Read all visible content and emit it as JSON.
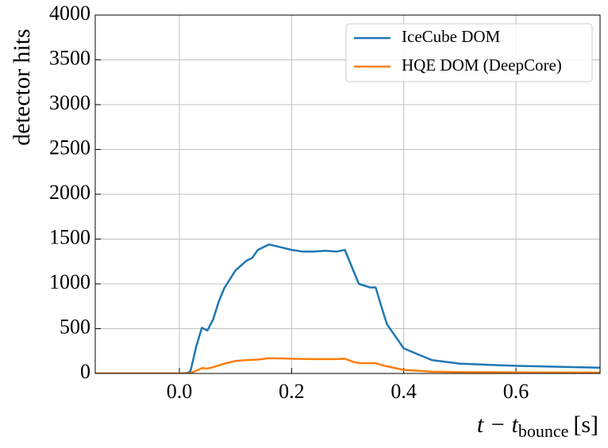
{
  "chart_data": {
    "type": "line",
    "ylabel": "detector hits",
    "xlabel": {
      "main": "t − t",
      "sub": "bounce",
      "unit": "[s]"
    },
    "x": [
      -0.15,
      0,
      0.015,
      0.02,
      0.03,
      0.04,
      0.05,
      0.06,
      0.07,
      0.08,
      0.1,
      0.12,
      0.13,
      0.14,
      0.16,
      0.18,
      0.2,
      0.22,
      0.24,
      0.26,
      0.28,
      0.295,
      0.31,
      0.32,
      0.34,
      0.35,
      0.36,
      0.37,
      0.4,
      0.45,
      0.5,
      0.6,
      0.75
    ],
    "series": [
      {
        "name": "IceCube DOM",
        "color": "#1f77b4",
        "values": [
          0,
          0,
          5,
          30,
          300,
          510,
          480,
          600,
          800,
          950,
          1150,
          1260,
          1290,
          1380,
          1440,
          1410,
          1380,
          1360,
          1360,
          1370,
          1360,
          1380,
          1150,
          1000,
          960,
          960,
          750,
          550,
          280,
          150,
          110,
          85,
          65
        ]
      },
      {
        "name": "HQE DOM (DeepCore)",
        "color": "#ff7f0e",
        "values": [
          0,
          0,
          0,
          5,
          30,
          60,
          55,
          70,
          90,
          110,
          140,
          150,
          152,
          155,
          170,
          168,
          165,
          162,
          160,
          160,
          160,
          165,
          130,
          115,
          115,
          115,
          95,
          80,
          40,
          20,
          15,
          12,
          10
        ]
      }
    ],
    "xlim": [
      -0.15,
      0.75
    ],
    "ylim": [
      0,
      4000
    ],
    "xticks": [
      {
        "value": 0,
        "label": "0.0"
      },
      0.2,
      0.4,
      0.6
    ],
    "yticks": [
      0,
      500,
      1000,
      1500,
      2000,
      2500,
      3000,
      3500,
      4000
    ],
    "grid": true,
    "legend": "upper right"
  }
}
